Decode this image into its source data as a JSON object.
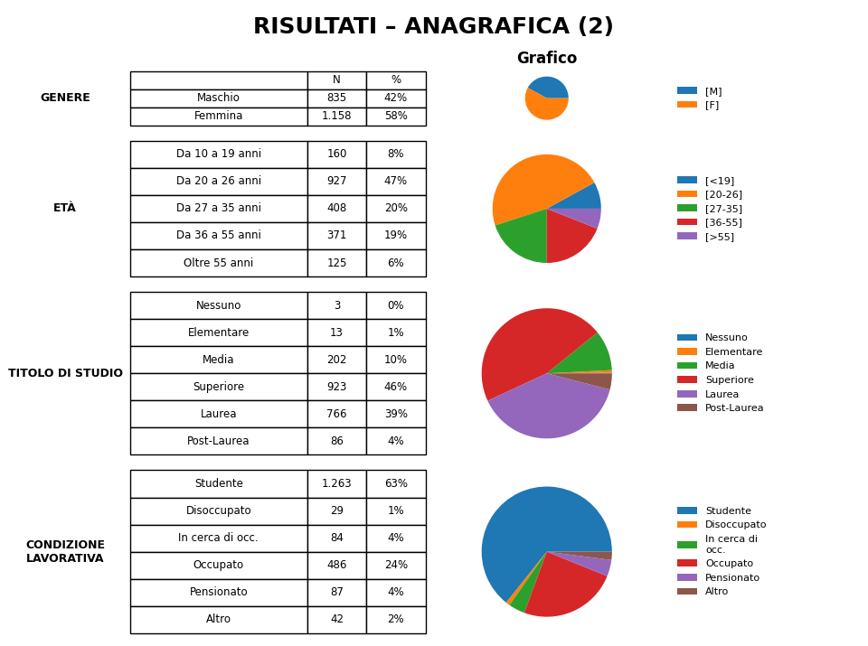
{
  "title": "RISULTATI – ANAGRAFICA (2)",
  "columns": [
    "N",
    "%"
  ],
  "chart_header": "Grafico",
  "chart_data": [
    {
      "type": "pie",
      "title": "GENERE",
      "categories": [
        "[M]",
        "[F]"
      ],
      "values": [
        42,
        58
      ],
      "legend": "center left",
      "rows": [
        [
          "Maschio",
          "835",
          "42%"
        ],
        [
          "Femmina",
          "1.158",
          "58%"
        ]
      ]
    },
    {
      "type": "pie",
      "title": "ETÀ",
      "categories": [
        "[<19]",
        "[20-26]",
        "[27-35]",
        "[36-55]",
        "[>55]"
      ],
      "values": [
        8,
        47,
        20,
        19,
        6
      ],
      "legend": "center left",
      "rows": [
        [
          "Da 10 a 19 anni",
          "160",
          "8%"
        ],
        [
          "Da 20 a 26 anni",
          "927",
          "47%"
        ],
        [
          "Da 27 a 35 anni",
          "408",
          "20%"
        ],
        [
          "Da 36 a 55 anni",
          "371",
          "19%"
        ],
        [
          "Oltre 55 anni",
          "125",
          "6%"
        ]
      ]
    },
    {
      "type": "pie",
      "title": "TITOLO DI STUDIO",
      "categories": [
        "Nessuno",
        "Elementare",
        "Media",
        "Superiore",
        "Laurea",
        "Post-Laurea"
      ],
      "values": [
        0.15,
        0.65,
        10,
        46,
        39,
        4
      ],
      "legend": "center left",
      "rows": [
        [
          "Nessuno",
          "3",
          "0%"
        ],
        [
          "Elementare",
          "13",
          "1%"
        ],
        [
          "Media",
          "202",
          "10%"
        ],
        [
          "Superiore",
          "923",
          "46%"
        ],
        [
          "Laurea",
          "766",
          "39%"
        ],
        [
          "Post-Laurea",
          "86",
          "4%"
        ]
      ]
    },
    {
      "type": "pie",
      "title": "CONDIZIONE\nLAVORATIVA",
      "categories": [
        "Studente",
        "Disoccupato",
        "In cerca di\nocc.",
        "Occupato",
        "Pensionato",
        "Altro"
      ],
      "values": [
        63,
        1,
        4,
        24,
        4,
        2
      ],
      "legend": "center left",
      "rows": [
        [
          "Studente",
          "1.263",
          "63%"
        ],
        [
          "Disoccupato",
          "29",
          "1%"
        ],
        [
          "In cerca di occ.",
          "84",
          "4%"
        ],
        [
          "Occupato",
          "486",
          "24%"
        ],
        [
          "Pensionato",
          "87",
          "4%"
        ],
        [
          "Altro",
          "42",
          "2%"
        ]
      ]
    }
  ]
}
